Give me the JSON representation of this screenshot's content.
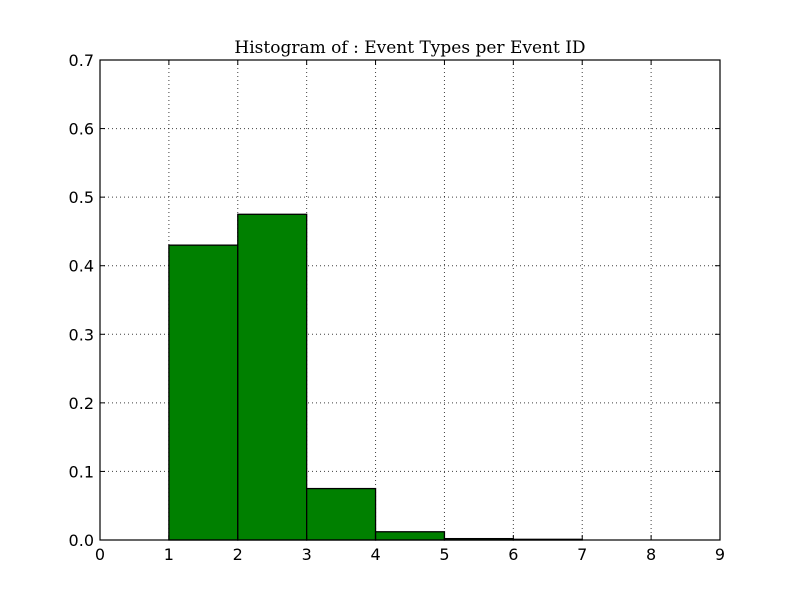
{
  "chart_data": {
    "type": "bar",
    "title": "Histogram of : Event Types per Event ID",
    "xlabel": "",
    "ylabel": "",
    "bins": [
      [
        1,
        2
      ],
      [
        2,
        3
      ],
      [
        3,
        4
      ],
      [
        4,
        5
      ],
      [
        5,
        6
      ],
      [
        6,
        7
      ],
      [
        7,
        8
      ],
      [
        8,
        9
      ]
    ],
    "values": [
      0.43,
      0.475,
      0.075,
      0.012,
      0.002,
      0.001,
      0.0,
      0.0
    ],
    "xlim": [
      0,
      9
    ],
    "ylim": [
      0,
      0.7
    ],
    "xticks": [
      0,
      1,
      2,
      3,
      4,
      5,
      6,
      7,
      8,
      9
    ],
    "yticks": [
      0.0,
      0.1,
      0.2,
      0.3,
      0.4,
      0.5,
      0.6,
      0.7
    ],
    "xtick_labels": [
      "0",
      "1",
      "2",
      "3",
      "4",
      "5",
      "6",
      "7",
      "8",
      "9"
    ],
    "ytick_labels": [
      "0.0",
      "0.1",
      "0.2",
      "0.3",
      "0.4",
      "0.5",
      "0.6",
      "0.7"
    ],
    "grid": true,
    "bar_color": "#008000",
    "edge_color": "#000000"
  }
}
